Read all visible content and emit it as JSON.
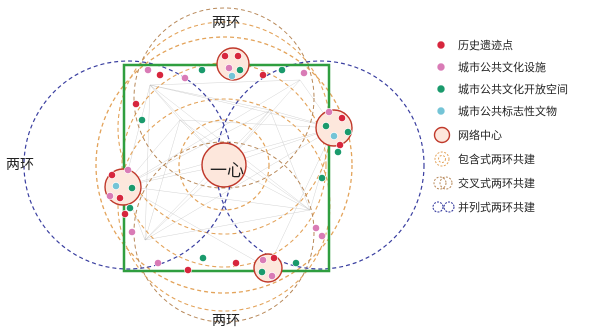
{
  "labels": {
    "top": "两环",
    "bottom": "两环",
    "left": "两环",
    "center": "一心"
  },
  "colors": {
    "historic": "#d7263d",
    "public_facility": "#d97bb6",
    "public_space": "#1a9a6c",
    "landmark": "#74c4d6",
    "network_center_stroke": "#c0392b",
    "network_center_fill": "#fde7dc",
    "inclusive_ring": "#e3a35a",
    "cross_ring": "#b8895a",
    "parallel_ring": "#3a3fa0",
    "square": "#2f9e3f",
    "link_lines": "#b0b0b0"
  },
  "legend": [
    {
      "key": "historic",
      "label": "历史遗迹点",
      "icon": "red-dot-icon"
    },
    {
      "key": "public_facility",
      "label": "城市公共文化设施",
      "icon": "pink-dot-icon"
    },
    {
      "key": "public_space",
      "label": "城市公共文化开放空间",
      "icon": "green-dot-icon"
    },
    {
      "key": "landmark",
      "label": "城市公共标志性文物",
      "icon": "cyan-dot-icon"
    },
    {
      "key": "network_center",
      "label": "网络中心",
      "icon": "network-center-icon"
    },
    {
      "key": "inclusive",
      "label": "包含式两环共建",
      "icon": "concentric-rings-icon"
    },
    {
      "key": "cross",
      "label": "交叉式两环共建",
      "icon": "crossing-rings-icon"
    },
    {
      "key": "parallel",
      "label": "并列式两环共建",
      "icon": "parallel-rings-icon"
    }
  ]
}
